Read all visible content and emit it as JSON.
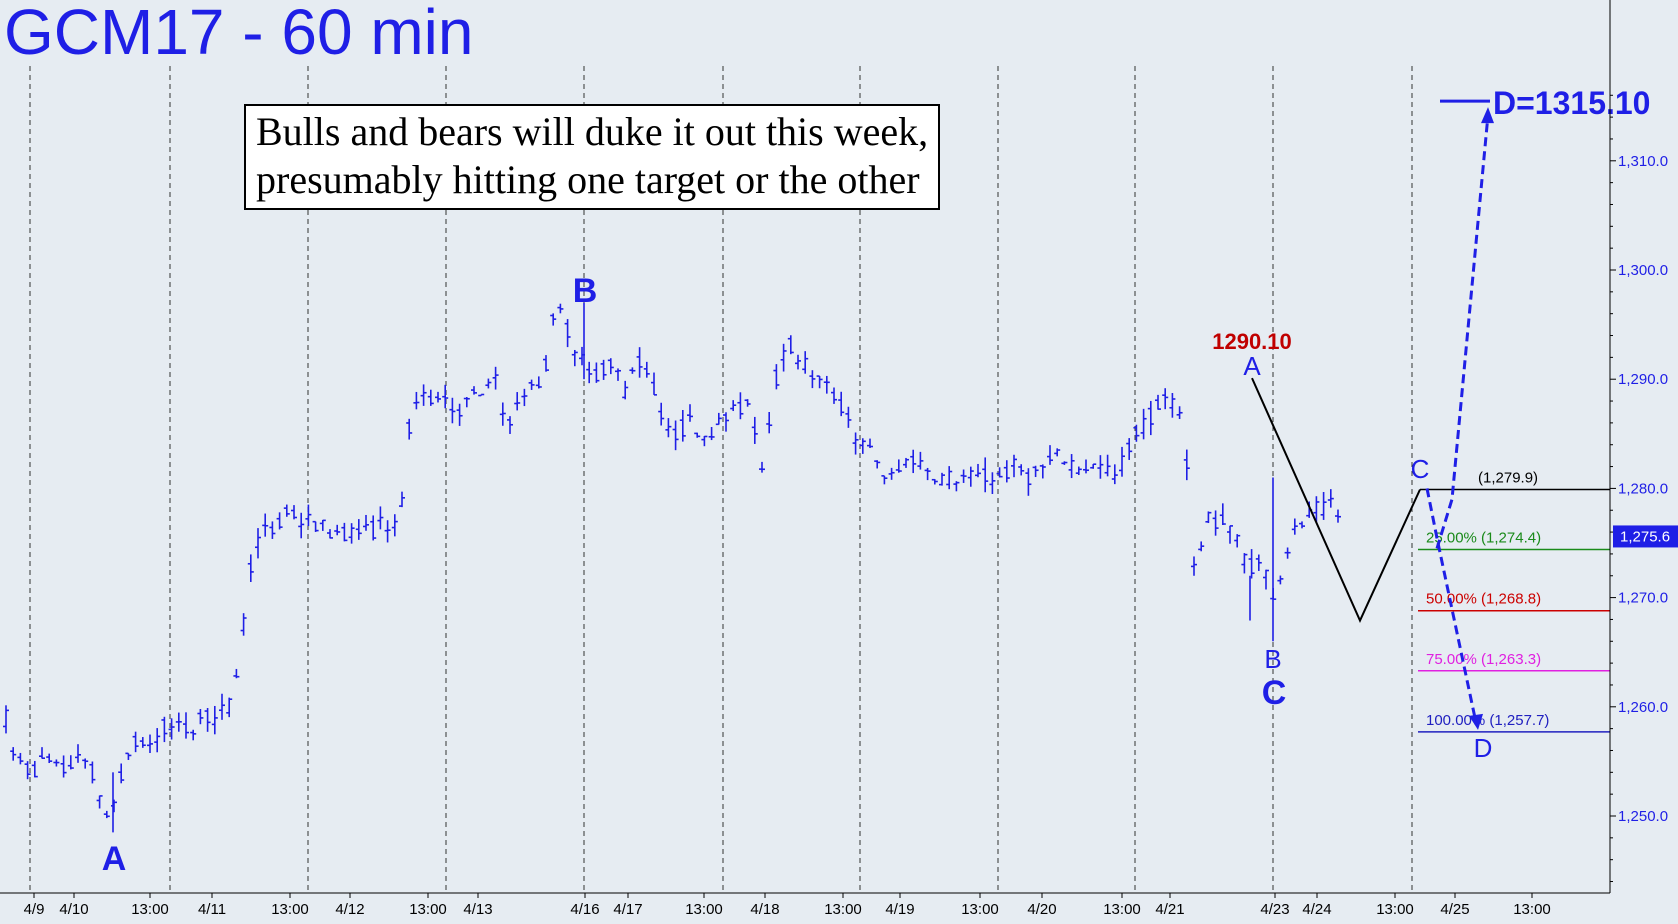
{
  "title": "GCM17 - 60 min",
  "note": {
    "line1": "Bulls and bears will duke it out this week,",
    "line2": "presumably hitting one target or the other"
  },
  "colors": {
    "background": "#e6ecf2",
    "price_bars": "#1f1fe6",
    "title": "#1f1fe6",
    "high_label": "#c00000",
    "fib_25": "#1a8a1a",
    "fib_50": "#cc0000",
    "fib_75": "#e020e0",
    "fib_100": "#2020c0",
    "abc_lines": "#000000"
  },
  "chart_data": {
    "type": "ohlc",
    "y_axis": {
      "range": [
        1242,
        1318
      ],
      "ticks": [
        "1,250.0",
        "1,260.0",
        "1,270.0",
        "1,280.0",
        "1,290.0",
        "1,300.0",
        "1,310.0"
      ],
      "last_price_label": "1,275.6",
      "last_price": 1275.6
    },
    "x_axis": {
      "labels": [
        "4/9",
        "4/10",
        "13:00",
        "4/11",
        "13:00",
        "4/12",
        "13:00",
        "4/13",
        "4/16",
        "4/17",
        "13:00",
        "4/18",
        "13:00",
        "4/19",
        "13:00",
        "4/20",
        "13:00",
        "4/21",
        "4/23",
        "4/24",
        "13:00",
        "4/25",
        "13:00"
      ],
      "grid_dashed_vertical": true
    },
    "price_path": [
      [
        0,
        1268
      ],
      [
        8,
        1256
      ],
      [
        20,
        1255
      ],
      [
        30,
        1254
      ],
      [
        45,
        1255
      ],
      [
        60,
        1254
      ],
      [
        75,
        1255
      ],
      [
        90,
        1255
      ],
      [
        100,
        1251
      ],
      [
        110,
        1250
      ],
      [
        120,
        1253
      ],
      [
        130,
        1256
      ],
      [
        140,
        1257
      ],
      [
        150,
        1256
      ],
      [
        160,
        1258
      ],
      [
        175,
        1258
      ],
      [
        190,
        1258
      ],
      [
        200,
        1259
      ],
      [
        215,
        1259
      ],
      [
        230,
        1260
      ],
      [
        240,
        1265
      ],
      [
        248,
        1271
      ],
      [
        252,
        1274
      ],
      [
        262,
        1276
      ],
      [
        275,
        1276
      ],
      [
        290,
        1278
      ],
      [
        300,
        1277
      ],
      [
        310,
        1277
      ],
      [
        330,
        1276
      ],
      [
        350,
        1276
      ],
      [
        370,
        1276
      ],
      [
        385,
        1277
      ],
      [
        398,
        1276
      ],
      [
        405,
        1281
      ],
      [
        412,
        1288
      ],
      [
        425,
        1288
      ],
      [
        440,
        1289
      ],
      [
        455,
        1287
      ],
      [
        470,
        1288
      ],
      [
        485,
        1289
      ],
      [
        495,
        1290
      ],
      [
        505,
        1286
      ],
      [
        515,
        1287
      ],
      [
        525,
        1289
      ],
      [
        535,
        1289
      ],
      [
        545,
        1290
      ],
      [
        550,
        1296
      ],
      [
        560,
        1296
      ],
      [
        570,
        1294
      ],
      [
        580,
        1292
      ],
      [
        590,
        1290
      ],
      [
        600,
        1291
      ],
      [
        615,
        1291
      ],
      [
        625,
        1289
      ],
      [
        635,
        1292
      ],
      [
        645,
        1291
      ],
      [
        655,
        1289
      ],
      [
        665,
        1285
      ],
      [
        675,
        1285
      ],
      [
        690,
        1286
      ],
      [
        705,
        1285
      ],
      [
        720,
        1286
      ],
      [
        735,
        1287
      ],
      [
        750,
        1288
      ],
      [
        762,
        1282
      ],
      [
        770,
        1287
      ],
      [
        778,
        1291
      ],
      [
        790,
        1293
      ],
      [
        800,
        1292
      ],
      [
        815,
        1290
      ],
      [
        830,
        1289
      ],
      [
        845,
        1287
      ],
      [
        860,
        1284
      ],
      [
        875,
        1283
      ],
      [
        885,
        1281
      ],
      [
        895,
        1281
      ],
      [
        910,
        1283
      ],
      [
        925,
        1282
      ],
      [
        940,
        1281
      ],
      [
        955,
        1281
      ],
      [
        970,
        1281
      ],
      [
        985,
        1281
      ],
      [
        1000,
        1281
      ],
      [
        1015,
        1282
      ],
      [
        1030,
        1281
      ],
      [
        1045,
        1282
      ],
      [
        1060,
        1283
      ],
      [
        1080,
        1282
      ],
      [
        1100,
        1282
      ],
      [
        1115,
        1281
      ],
      [
        1125,
        1283
      ],
      [
        1135,
        1285
      ],
      [
        1145,
        1286
      ],
      [
        1155,
        1287
      ],
      [
        1165,
        1288
      ],
      [
        1175,
        1288
      ],
      [
        1185,
        1286
      ],
      [
        1192,
        1272
      ],
      [
        1198,
        1274
      ],
      [
        1208,
        1277
      ],
      [
        1218,
        1277
      ],
      [
        1228,
        1277
      ],
      [
        1238,
        1275
      ],
      [
        1248,
        1273
      ],
      [
        1258,
        1273
      ],
      [
        1268,
        1272
      ],
      [
        1275,
        1270
      ],
      [
        1285,
        1274
      ],
      [
        1295,
        1276
      ],
      [
        1305,
        1277
      ],
      [
        1315,
        1278
      ],
      [
        1325,
        1278
      ],
      [
        1332,
        1279
      ],
      [
        1340,
        1277
      ]
    ],
    "pattern_left": {
      "A": {
        "label": "A",
        "price": 1248.5
      },
      "B": {
        "label": "B",
        "price": 1296.8
      },
      "C": {
        "label": "C",
        "price": 1266.0
      },
      "D_target": {
        "label": "D",
        "value_label": "D=1315.10",
        "price": 1315.1
      }
    },
    "pattern_right": {
      "A": {
        "label": "A",
        "price": 1290.1,
        "price_label": "1290.10"
      },
      "B": {
        "label": "B",
        "price": 1267.9
      },
      "C": {
        "label": "C",
        "price": 1279.9,
        "price_label": "(1,279.9)"
      },
      "D_target": {
        "label": "D",
        "price": 1257.7
      }
    },
    "fib_levels": [
      {
        "label": "25.00% (1,274.4)",
        "price": 1274.4,
        "color_key": "fib_25"
      },
      {
        "label": "50.00% (1,268.8)",
        "price": 1268.8,
        "color_key": "fib_50"
      },
      {
        "label": "75.00% (1,263.3)",
        "price": 1263.3,
        "color_key": "fib_75"
      },
      {
        "label": "100.00% (1,257.7)",
        "price": 1257.7,
        "color_key": "fib_100"
      }
    ]
  }
}
